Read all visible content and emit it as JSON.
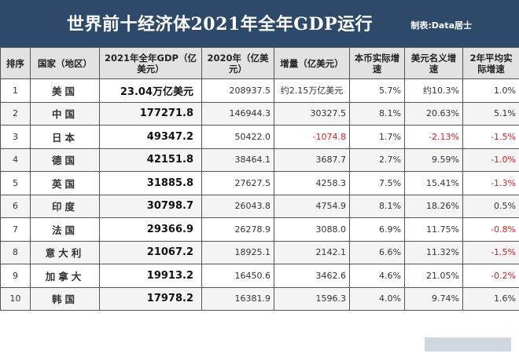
{
  "header": {
    "title": "世界前十经济体2021年全年GDP运行",
    "author": "制表:Data居士"
  },
  "columns": [
    "排序",
    "国家（地区）",
    "2021年全年GDP（亿美元）",
    "2020年（亿美元）",
    "增量（亿美元）",
    "本币实际增速",
    "美元名义增速",
    "2年平均实际增速"
  ],
  "rows": [
    {
      "rank": "1",
      "country": "美国",
      "gdp2021": "23.04万亿美元",
      "gdp2020": "208937.5",
      "increase": "约2.15万亿美元",
      "real_growth": "5.7%",
      "nominal_growth": "约10.3%",
      "avg2y": "1.0%"
    },
    {
      "rank": "2",
      "country": "中国",
      "gdp2021": "177271.8",
      "gdp2020": "146944.3",
      "increase": "30327.5",
      "real_growth": "8.1%",
      "nominal_growth": "20.63%",
      "avg2y": "5.1%"
    },
    {
      "rank": "3",
      "country": "日本",
      "gdp2021": "49347.2",
      "gdp2020": "50422.0",
      "increase": "-1074.8",
      "real_growth": "1.7%",
      "nominal_growth": "-2.13%",
      "avg2y": "-1.5%"
    },
    {
      "rank": "4",
      "country": "德国",
      "gdp2021": "42151.8",
      "gdp2020": "38464.1",
      "increase": "3687.7",
      "real_growth": "2.7%",
      "nominal_growth": "9.59%",
      "avg2y": "-1.0%"
    },
    {
      "rank": "5",
      "country": "英国",
      "gdp2021": "31885.8",
      "gdp2020": "27627.5",
      "increase": "4258.3",
      "real_growth": "7.5%",
      "nominal_growth": "15.41%",
      "avg2y": "-1.3%"
    },
    {
      "rank": "6",
      "country": "印度",
      "gdp2021": "30798.7",
      "gdp2020": "26043.8",
      "increase": "4754.9",
      "real_growth": "8.1%",
      "nominal_growth": "18.26%",
      "avg2y": "0.5%"
    },
    {
      "rank": "7",
      "country": "法国",
      "gdp2021": "29366.9",
      "gdp2020": "26278.9",
      "increase": "3088.0",
      "real_growth": "6.9%",
      "nominal_growth": "11.75%",
      "avg2y": "-0.8%"
    },
    {
      "rank": "8",
      "country": "意大利",
      "gdp2021": "21067.2",
      "gdp2020": "18925.1",
      "increase": "2142.1",
      "real_growth": "6.6%",
      "nominal_growth": "11.32%",
      "avg2y": "-1.5%"
    },
    {
      "rank": "9",
      "country": "加拿大",
      "gdp2021": "19913.2",
      "gdp2020": "16450.6",
      "increase": "3462.6",
      "real_growth": "4.6%",
      "nominal_growth": "21.05%",
      "avg2y": "-0.2%"
    },
    {
      "rank": "10",
      "country": "韩国",
      "gdp2021": "17978.2",
      "gdp2020": "16381.9",
      "increase": "1596.3",
      "real_growth": "4.0%",
      "nominal_growth": "9.74%",
      "avg2y": "1.6%"
    }
  ],
  "colors": {
    "banner": "#2e4a6a",
    "header_bg": "#e2e2e2",
    "negative": "#e02020"
  }
}
